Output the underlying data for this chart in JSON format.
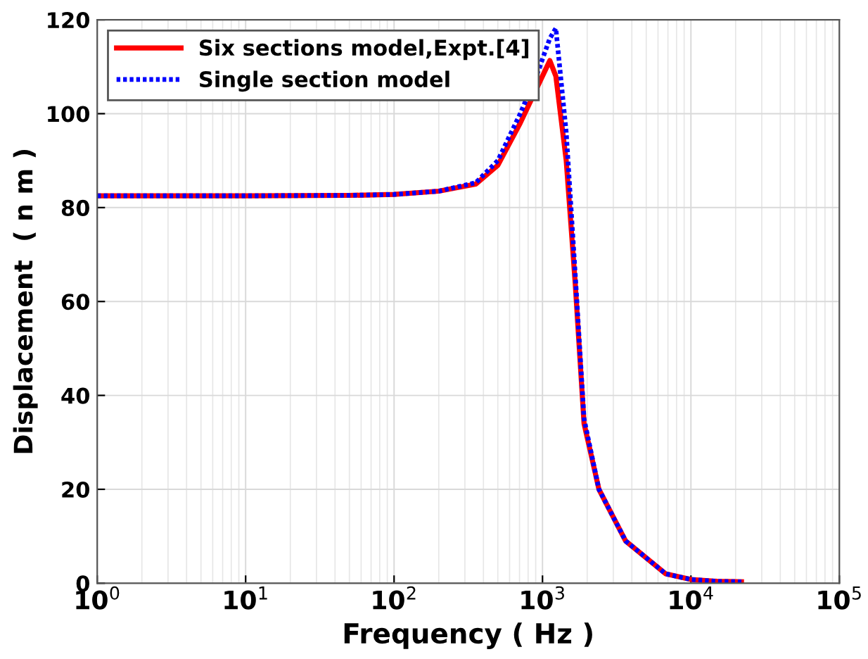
{
  "chart_data": {
    "type": "line",
    "xlabel": "Frequency ( Hz )",
    "ylabel": "Displacement  ( n m )",
    "x": [
      1,
      10,
      50,
      100,
      200,
      355,
      500,
      708,
      933,
      1120,
      1230,
      1445,
      1660,
      1905,
      2400,
      3630,
      6760,
      10000,
      15000,
      21900
    ],
    "series": [
      {
        "name": "Six sections model,Expt.[4]",
        "color": "#ff0000",
        "line_style": "solid",
        "values": [
          82.5,
          82.5,
          82.6,
          82.8,
          83.5,
          85,
          89,
          98,
          106,
          111.3,
          108,
          90,
          64,
          34,
          20,
          9,
          2,
          0.8,
          0.4,
          0.3
        ]
      },
      {
        "name": "Single section model",
        "color": "#0000ff",
        "line_style": "dotted",
        "values": [
          82.5,
          82.5,
          82.6,
          82.8,
          83.5,
          85.3,
          90,
          100,
          109,
          116,
          118.2,
          96,
          66,
          35,
          20,
          9,
          2,
          0.8,
          0.4,
          0.3
        ]
      }
    ],
    "log": "x",
    "xlim": [
      1,
      100000
    ],
    "xticks": [
      {
        "value": 1,
        "label": "10$^{0}$"
      },
      {
        "value": 10,
        "label": "10$^{1}$"
      },
      {
        "value": 100,
        "label": "10$^{2}$"
      },
      {
        "value": 1000,
        "label": "10$^{3}$"
      },
      {
        "value": 10000,
        "label": "10$^{4}$"
      },
      {
        "value": 100000,
        "label": "10$^{5}$"
      }
    ],
    "ylim": [
      0,
      120
    ],
    "yticks": [
      0,
      20,
      40,
      60,
      80,
      100,
      120
    ],
    "grid": true,
    "legend": "top left"
  }
}
